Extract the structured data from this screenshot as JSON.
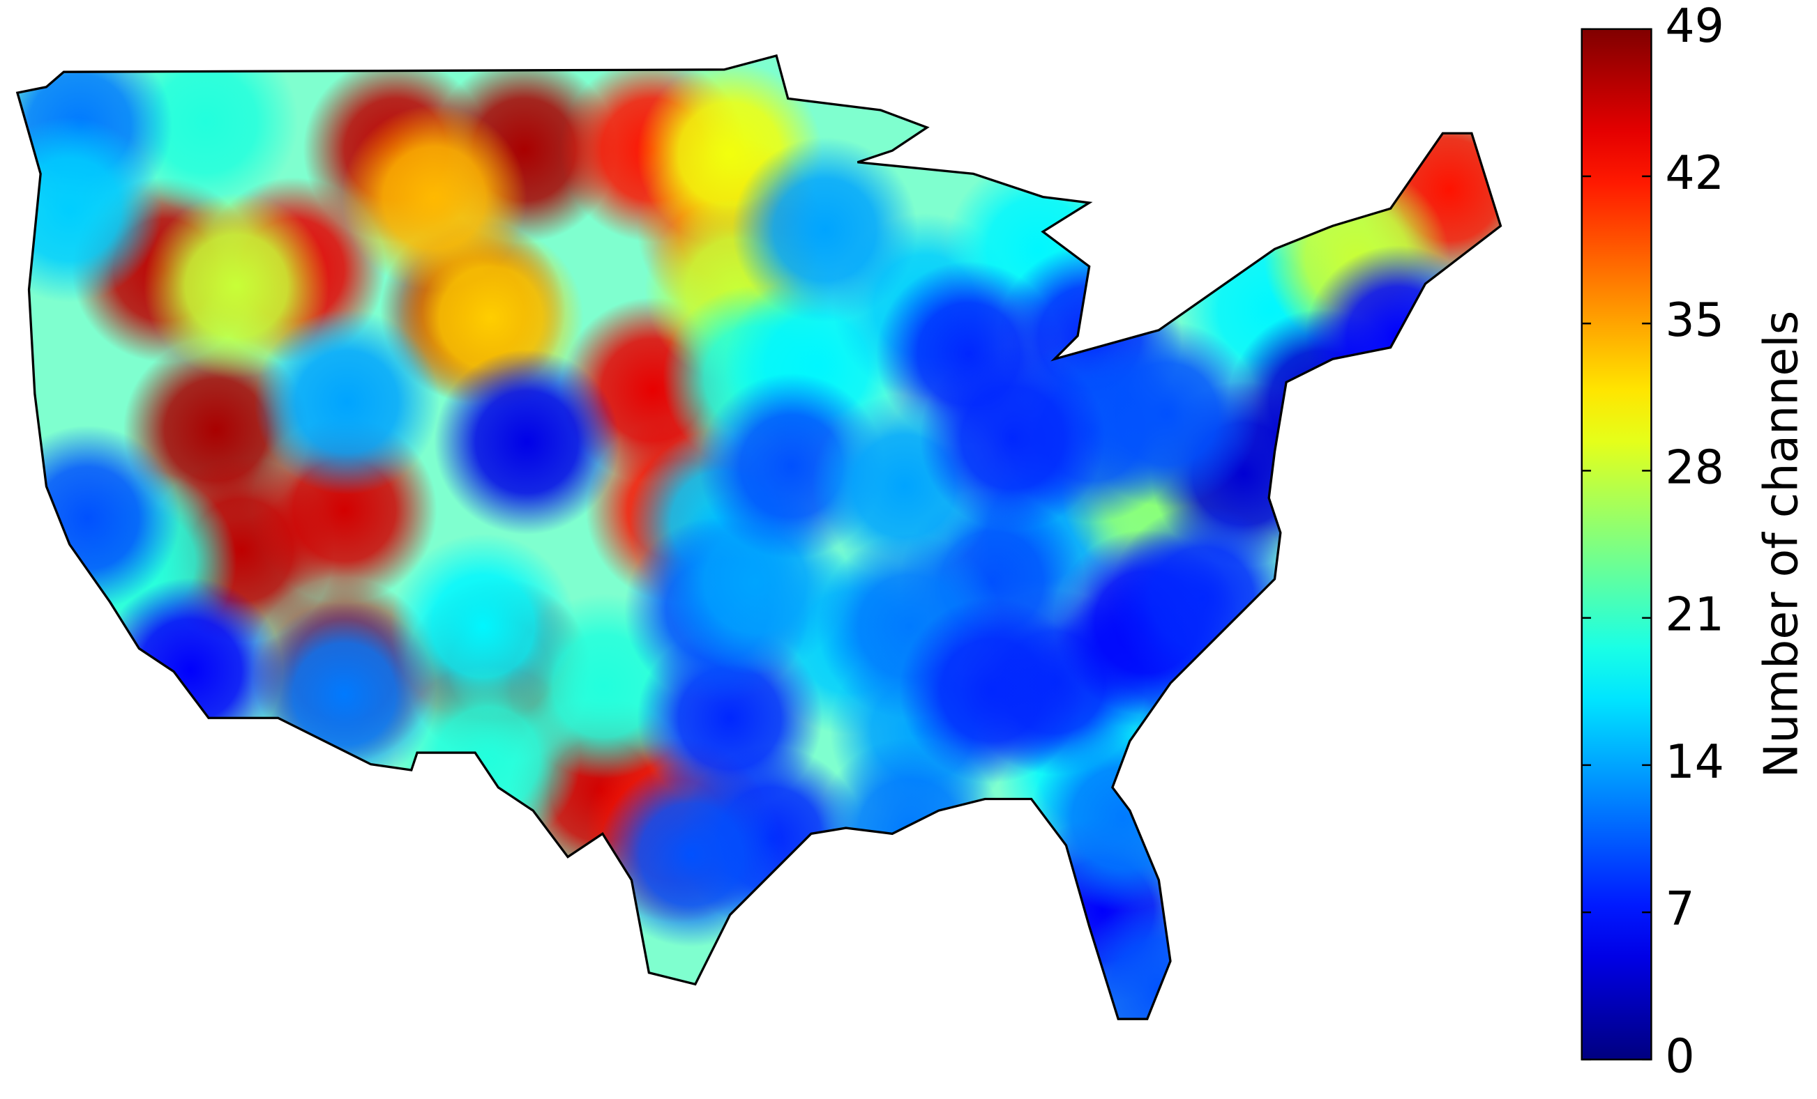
{
  "chart_data": {
    "type": "map",
    "colormap": "jet",
    "colorbar": {
      "label": "Number of channels",
      "clim": [
        0,
        49
      ],
      "ticks": [
        0,
        7,
        14,
        21,
        28,
        35,
        42,
        49
      ]
    },
    "points": [
      {
        "lon": -110,
        "lat": 47,
        "value": 46
      },
      {
        "lon": -105,
        "lat": 47,
        "value": 47
      },
      {
        "lon": -100,
        "lat": 47,
        "value": 42
      },
      {
        "lon": -97,
        "lat": 45,
        "value": 38
      },
      {
        "lon": -107,
        "lat": 43,
        "value": 47
      },
      {
        "lon": -117,
        "lat": 40,
        "value": 47
      },
      {
        "lon": -116,
        "lat": 37,
        "value": 46
      },
      {
        "lon": -112,
        "lat": 38,
        "value": 45
      },
      {
        "lon": -112,
        "lat": 34,
        "value": 46
      },
      {
        "lon": -106,
        "lat": 34,
        "value": 46
      },
      {
        "lon": -102,
        "lat": 31,
        "value": 45
      },
      {
        "lon": -99,
        "lat": 30,
        "value": 42
      },
      {
        "lon": -99,
        "lat": 38,
        "value": 42
      },
      {
        "lon": -100,
        "lat": 41,
        "value": 44
      },
      {
        "lon": -119,
        "lat": 44,
        "value": 46
      },
      {
        "lon": -114,
        "lat": 44,
        "value": 44
      },
      {
        "lon": -69,
        "lat": 46,
        "value": 42
      },
      {
        "lon": -97,
        "lat": 46.9,
        "value": 30
      },
      {
        "lon": -96.7,
        "lat": 43.5,
        "value": 28
      },
      {
        "lon": -117.4,
        "lat": 47.7,
        "value": 20
      },
      {
        "lon": -116.2,
        "lat": 43.6,
        "value": 28
      },
      {
        "lon": -108.5,
        "lat": 45.8,
        "value": 34
      },
      {
        "lon": -106.3,
        "lat": 42.8,
        "value": 33
      },
      {
        "lon": -101.9,
        "lat": 33.6,
        "value": 20
      },
      {
        "lon": -119.8,
        "lat": 36.7,
        "value": 20
      },
      {
        "lon": -106.6,
        "lat": 35.1,
        "value": 18
      },
      {
        "lon": -106.4,
        "lat": 31.8,
        "value": 20
      },
      {
        "lon": -96,
        "lat": 41.3,
        "value": 20
      },
      {
        "lon": -97.3,
        "lat": 37.7,
        "value": 16
      },
      {
        "lon": -93.6,
        "lat": 41.6,
        "value": 18
      },
      {
        "lon": -89.4,
        "lat": 43.1,
        "value": 16
      },
      {
        "lon": -76,
        "lat": 43,
        "value": 18
      },
      {
        "lon": -85,
        "lat": 37.5,
        "value": 14
      },
      {
        "lon": -92.3,
        "lat": 34.7,
        "value": 16
      },
      {
        "lon": -89.5,
        "lat": 32.5,
        "value": 14
      },
      {
        "lon": -81,
        "lat": 34,
        "value": 12
      },
      {
        "lon": -83,
        "lat": 31.5,
        "value": 18
      },
      {
        "lon": -85,
        "lat": 44.5,
        "value": 18
      },
      {
        "lon": -80.5,
        "lat": 38.5,
        "value": 25
      },
      {
        "lon": -72.6,
        "lat": 44.3,
        "value": 28
      },
      {
        "lon": -104.9,
        "lat": 39.7,
        "value": 5
      },
      {
        "lon": -111.9,
        "lat": 40.7,
        "value": 14
      },
      {
        "lon": -112,
        "lat": 33.4,
        "value": 12
      },
      {
        "lon": -118,
        "lat": 34,
        "value": 6
      },
      {
        "lon": -122,
        "lat": 37.8,
        "value": 10
      },
      {
        "lon": -122.3,
        "lat": 47.6,
        "value": 12
      },
      {
        "lon": -122.7,
        "lat": 45.5,
        "value": 16
      },
      {
        "lon": -97,
        "lat": 32.8,
        "value": 8
      },
      {
        "lon": -95.4,
        "lat": 29.8,
        "value": 8
      },
      {
        "lon": -98.5,
        "lat": 29.4,
        "value": 10
      },
      {
        "lon": -97.5,
        "lat": 35.5,
        "value": 10
      },
      {
        "lon": -96,
        "lat": 36.2,
        "value": 14
      },
      {
        "lon": -84.4,
        "lat": 33.7,
        "value": 8
      },
      {
        "lon": -87.7,
        "lat": 41.9,
        "value": 8
      },
      {
        "lon": -83,
        "lat": 42.3,
        "value": 8
      },
      {
        "lon": -74,
        "lat": 40.7,
        "value": 4
      },
      {
        "lon": -77,
        "lat": 38.9,
        "value": 4
      },
      {
        "lon": -80.8,
        "lat": 35.2,
        "value": 6
      },
      {
        "lon": -86.8,
        "lat": 36.2,
        "value": 10
      },
      {
        "lon": -94.6,
        "lat": 39.1,
        "value": 10
      },
      {
        "lon": -93.3,
        "lat": 45,
        "value": 14
      },
      {
        "lon": -90.2,
        "lat": 38.6,
        "value": 14
      },
      {
        "lon": -90,
        "lat": 35.1,
        "value": 12
      },
      {
        "lon": -90,
        "lat": 30,
        "value": 12
      },
      {
        "lon": -82.5,
        "lat": 28,
        "value": 6
      },
      {
        "lon": -80.2,
        "lat": 26,
        "value": 10
      },
      {
        "lon": -82.9,
        "lat": 40,
        "value": 10
      },
      {
        "lon": -80,
        "lat": 40.4,
        "value": 10
      },
      {
        "lon": -71,
        "lat": 42.3,
        "value": 6
      },
      {
        "lon": -86,
        "lat": 39.8,
        "value": 8
      },
      {
        "lon": -86.8,
        "lat": 33.5,
        "value": 8
      },
      {
        "lon": -81.7,
        "lat": 30.3,
        "value": 12
      },
      {
        "lon": -78.6,
        "lat": 35.8,
        "value": 8
      }
    ]
  }
}
